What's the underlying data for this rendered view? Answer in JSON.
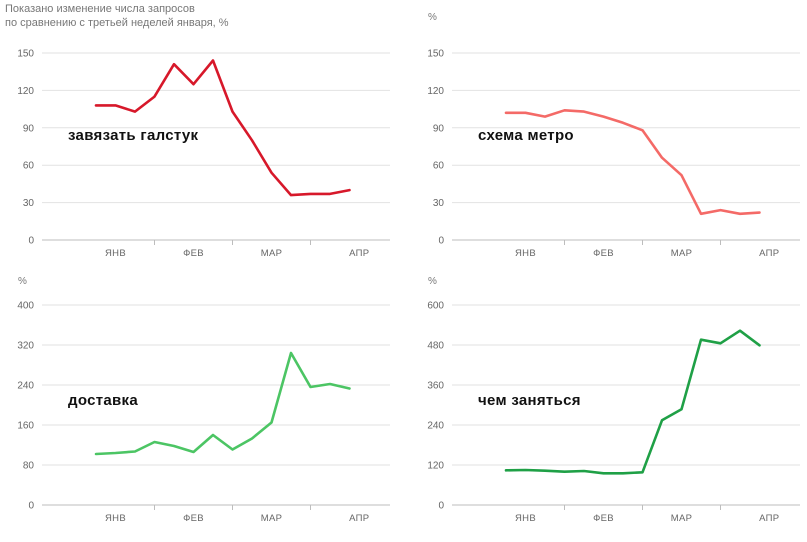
{
  "note": {
    "line1": "Показано изменение числа запросов",
    "line2": "по сравнению с третьей неделей января, %"
  },
  "chart_data": [
    {
      "type": "line",
      "series": [
        {
          "name": "завязать галстук",
          "color": "#d7182a",
          "values": [
            108,
            108,
            103,
            115,
            141,
            125,
            144,
            103,
            80,
            54,
            36,
            37,
            37,
            40
          ]
        }
      ],
      "x_ticks": [
        "ЯНВ",
        "ФЕВ",
        "МАР",
        "АПР"
      ],
      "y_ticks": [
        0,
        30,
        60,
        90,
        120,
        150
      ],
      "ylim": [
        0,
        150
      ],
      "unit": ""
    },
    {
      "type": "line",
      "series": [
        {
          "name": "схема метро",
          "color": "#f46a67",
          "values": [
            102,
            102,
            99,
            104,
            103,
            99,
            94,
            88,
            66,
            52,
            21,
            24,
            21,
            22
          ]
        }
      ],
      "x_ticks": [
        "ЯНВ",
        "ФЕВ",
        "МАР",
        "АПР"
      ],
      "y_ticks": [
        0,
        30,
        60,
        90,
        120,
        150
      ],
      "ylim": [
        0,
        150
      ],
      "unit": "%"
    },
    {
      "type": "line",
      "series": [
        {
          "name": "доставка",
          "color": "#4cc564",
          "values": [
            102,
            104,
            107,
            126,
            118,
            106,
            140,
            111,
            133,
            165,
            304,
            236,
            242,
            233
          ]
        }
      ],
      "x_ticks": [
        "ЯНВ",
        "ФЕВ",
        "МАР",
        "АПР"
      ],
      "y_ticks": [
        0,
        80,
        160,
        240,
        320,
        400
      ],
      "ylim": [
        0,
        400
      ],
      "unit": "%"
    },
    {
      "type": "line",
      "series": [
        {
          "name": "чем заняться",
          "color": "#1fa046",
          "values": [
            104,
            105,
            103,
            100,
            102,
            95,
            95,
            98,
            254,
            287,
            496,
            485,
            523,
            479
          ]
        }
      ],
      "x_ticks": [
        "ЯНВ",
        "ФЕВ",
        "МАР",
        "АПР"
      ],
      "y_ticks": [
        0,
        120,
        240,
        360,
        480,
        600
      ],
      "ylim": [
        0,
        600
      ],
      "unit": "%"
    }
  ]
}
